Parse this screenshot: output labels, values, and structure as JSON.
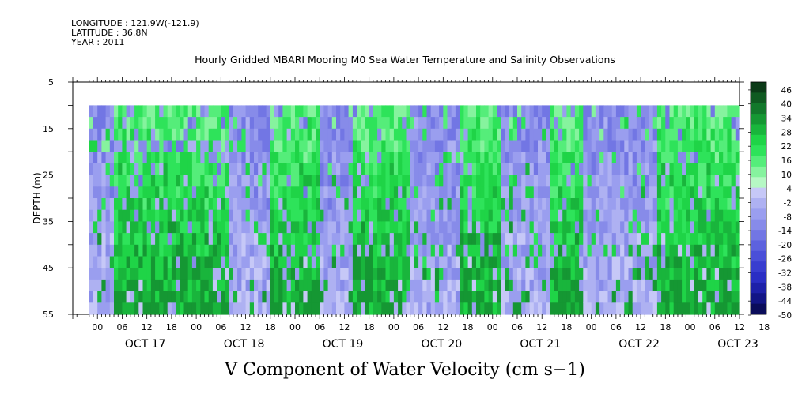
{
  "header": {
    "longitude": "LONGITUDE : 121.9W(-121.9)",
    "latitude": "LATITUDE : 36.8N",
    "year": "YEAR : 2011"
  },
  "chart_data": {
    "type": "heatmap",
    "title": "Hourly Gridded MBARI Mooring M0 Sea Water Temperature and Salinity Observations",
    "variable_label": "V Component of Water Velocity (cm s−1)",
    "ylabel": "DEPTH (m)",
    "y_ticks": [
      5,
      15,
      25,
      35,
      45,
      55
    ],
    "y_range": [
      5,
      55
    ],
    "y_inverted": true,
    "data_depth_range": [
      10,
      55
    ],
    "x_hour_ticks": [
      "00",
      "06",
      "12",
      "18",
      "00",
      "06",
      "12",
      "18",
      "00",
      "06",
      "12",
      "18",
      "00",
      "06",
      "12",
      "18",
      "00",
      "06",
      "12",
      "18",
      "00",
      "06",
      "12",
      "18",
      "00",
      "06",
      "12",
      "18"
    ],
    "x_date_labels": [
      "OCT 17",
      "OCT 18",
      "OCT 19",
      "OCT 20",
      "OCT 21",
      "OCT 22",
      "OCT 23"
    ],
    "x_range_hours_from_oct16_18": [
      0,
      162
    ],
    "data_start_hour": 4,
    "colorbar": {
      "labels": [
        "46",
        "40",
        "34",
        "28",
        "22",
        "16",
        "10",
        "4",
        "-2",
        "-8",
        "-14",
        "-20",
        "-26",
        "-32",
        "-38",
        "-44",
        "-50"
      ],
      "min": -50,
      "max": 52,
      "positive_colors": [
        "#0b3a17",
        "#0f5a21",
        "#12782b",
        "#159733",
        "#19b53c",
        "#1fd447",
        "#2ee35a",
        "#55ed7a",
        "#86f39e",
        "#b6f8c4"
      ],
      "negative_colors": [
        "#c6c8f7",
        "#aeb1f2",
        "#9a9eef",
        "#878be9",
        "#7276e4",
        "#5d62de",
        "#4a4fd8",
        "#383dcf",
        "#2a2ec4",
        "#1d20a8",
        "#121585",
        "#0a0c5a"
      ]
    },
    "field_pattern": {
      "note": "Alternating bands of positive (green) and negative (blue) flow over time; mostly vertically coherent.",
      "segments_hours": [
        {
          "t0": 4,
          "t1": 10,
          "sign": "neg"
        },
        {
          "t0": 10,
          "t1": 20,
          "sign": "pos"
        },
        {
          "t0": 20,
          "t1": 28,
          "sign": "pos"
        },
        {
          "t0": 28,
          "t1": 38,
          "sign": "pos"
        },
        {
          "t0": 38,
          "t1": 48,
          "sign": "neg"
        },
        {
          "t0": 48,
          "t1": 60,
          "sign": "pos"
        },
        {
          "t0": 60,
          "t1": 68,
          "sign": "neg"
        },
        {
          "t0": 68,
          "t1": 82,
          "sign": "pos"
        },
        {
          "t0": 82,
          "t1": 94,
          "sign": "neg"
        },
        {
          "t0": 94,
          "t1": 104,
          "sign": "pos"
        },
        {
          "t0": 104,
          "t1": 116,
          "sign": "neg"
        },
        {
          "t0": 116,
          "t1": 124,
          "sign": "pos"
        },
        {
          "t0": 124,
          "t1": 142,
          "sign": "neg"
        },
        {
          "t0": 142,
          "t1": 162,
          "sign": "pos"
        }
      ]
    }
  }
}
